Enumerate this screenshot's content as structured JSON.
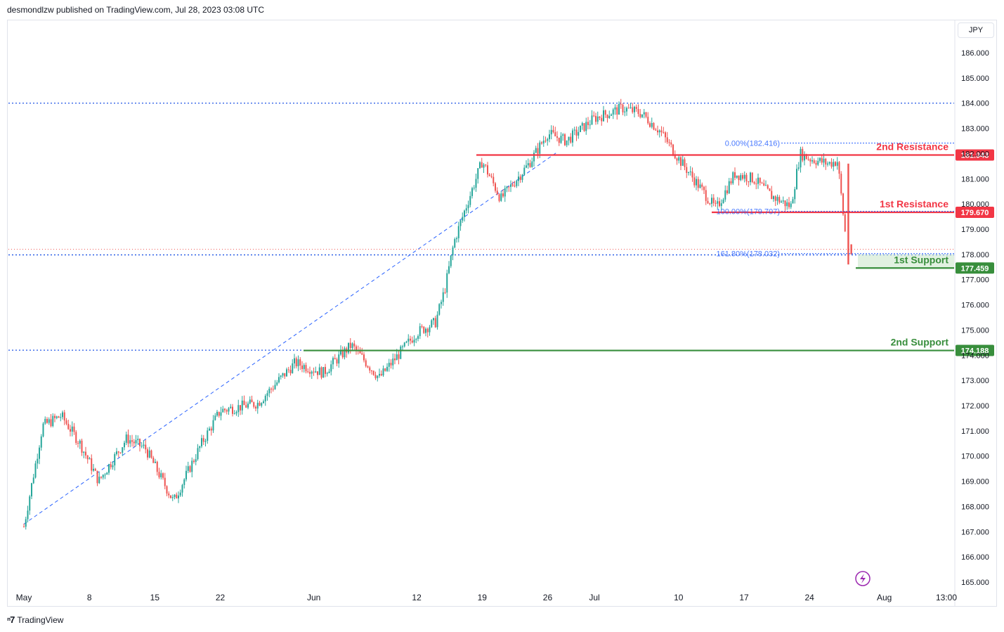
{
  "header": {
    "publisher_line": "desmondlzw published on TradingView.com, Jul 28, 2023 03:08 UTC"
  },
  "currency_button": {
    "label": "JPY"
  },
  "footer": {
    "brand": "TradingView",
    "logo_icon": "tradingview-logo-icon"
  },
  "colors": {
    "up": "#26a69a",
    "down": "#ef5350",
    "resistance": "#f23645",
    "support": "#388e3c",
    "fib": "#2962ff"
  },
  "chart_data": {
    "type": "candlestick",
    "y_axis": {
      "range": [
        164.6,
        186.8
      ],
      "ticks": [
        "186.000",
        "185.000",
        "184.000",
        "183.000",
        "182.000",
        "181.000",
        "180.000",
        "179.000",
        "178.000",
        "177.000",
        "176.000",
        "175.000",
        "174.000",
        "173.000",
        "172.000",
        "171.000",
        "170.000",
        "169.000",
        "168.000",
        "167.000",
        "166.000",
        "165.000"
      ]
    },
    "x_axis": {
      "tick_labels": [
        "May",
        "8",
        "15",
        "22",
        "Jun",
        "12",
        "19",
        "26",
        "Jul",
        "10",
        "17",
        "24",
        "Aug",
        "13:00"
      ]
    },
    "levels": [
      {
        "name": "2nd Resistance",
        "value": 181.943,
        "price_label": "181.943",
        "kind": "resistance"
      },
      {
        "name": "1st Resistance",
        "value": 179.67,
        "price_label": "179.670",
        "kind": "resistance"
      },
      {
        "name": "1st Support",
        "value": 177.459,
        "price_label": "177.459",
        "kind": "support"
      },
      {
        "name": "2nd Support",
        "value": 174.188,
        "price_label": "174.188",
        "kind": "support"
      }
    ],
    "horizontal_dotted_lines": [
      184.0,
      177.98,
      174.2
    ],
    "fibonacci": [
      {
        "label": "0.00%(182.416)",
        "value": 182.416
      },
      {
        "label": "100.00%(179.707)",
        "value": 179.707
      },
      {
        "label": "161.80%(178.032)",
        "value": 178.032
      }
    ],
    "trendline": {
      "from": {
        "date": "2023-05-01",
        "price": 167.3
      },
      "to": {
        "date": "2023-06-27",
        "price": 182.05
      }
    },
    "series_keypoints": [
      {
        "date": "2023-05-01",
        "price": 167.2
      },
      {
        "date": "2023-05-03",
        "price": 171.2
      },
      {
        "date": "2023-05-05",
        "price": 171.6
      },
      {
        "date": "2023-05-07",
        "price": 170.5
      },
      {
        "date": "2023-05-09",
        "price": 169.0
      },
      {
        "date": "2023-05-12",
        "price": 170.7
      },
      {
        "date": "2023-05-14",
        "price": 170.3
      },
      {
        "date": "2023-05-17",
        "price": 168.2
      },
      {
        "date": "2023-05-20",
        "price": 170.5
      },
      {
        "date": "2023-05-22",
        "price": 171.8
      },
      {
        "date": "2023-05-26",
        "price": 172.1
      },
      {
        "date": "2023-05-30",
        "price": 173.7
      },
      {
        "date": "2023-06-02",
        "price": 173.3
      },
      {
        "date": "2023-06-05",
        "price": 174.4
      },
      {
        "date": "2023-06-08",
        "price": 173.1
      },
      {
        "date": "2023-06-10",
        "price": 174.0
      },
      {
        "date": "2023-06-12",
        "price": 174.9
      },
      {
        "date": "2023-06-14",
        "price": 175.3
      },
      {
        "date": "2023-06-15",
        "price": 176.6
      },
      {
        "date": "2023-06-16",
        "price": 178.5
      },
      {
        "date": "2023-06-17",
        "price": 179.6
      },
      {
        "date": "2023-06-19",
        "price": 181.7
      },
      {
        "date": "2023-06-21",
        "price": 180.2
      },
      {
        "date": "2023-06-24",
        "price": 181.6
      },
      {
        "date": "2023-06-26",
        "price": 182.8
      },
      {
        "date": "2023-06-28",
        "price": 182.5
      },
      {
        "date": "2023-07-01",
        "price": 183.4
      },
      {
        "date": "2023-07-04",
        "price": 183.8
      },
      {
        "date": "2023-07-06",
        "price": 183.6
      },
      {
        "date": "2023-07-08",
        "price": 182.9
      },
      {
        "date": "2023-07-10",
        "price": 181.8
      },
      {
        "date": "2023-07-12",
        "price": 180.8
      },
      {
        "date": "2023-07-14",
        "price": 179.8
      },
      {
        "date": "2023-07-16",
        "price": 181.2
      },
      {
        "date": "2023-07-18",
        "price": 181.0
      },
      {
        "date": "2023-07-20",
        "price": 180.3
      },
      {
        "date": "2023-07-22",
        "price": 179.9
      },
      {
        "date": "2023-07-23",
        "price": 182.0
      },
      {
        "date": "2023-07-24",
        "price": 181.8
      },
      {
        "date": "2023-07-26",
        "price": 181.6
      },
      {
        "date": "2023-07-27",
        "price": 181.7
      },
      {
        "date": "2023-07-28",
        "price": 178.2
      }
    ]
  }
}
